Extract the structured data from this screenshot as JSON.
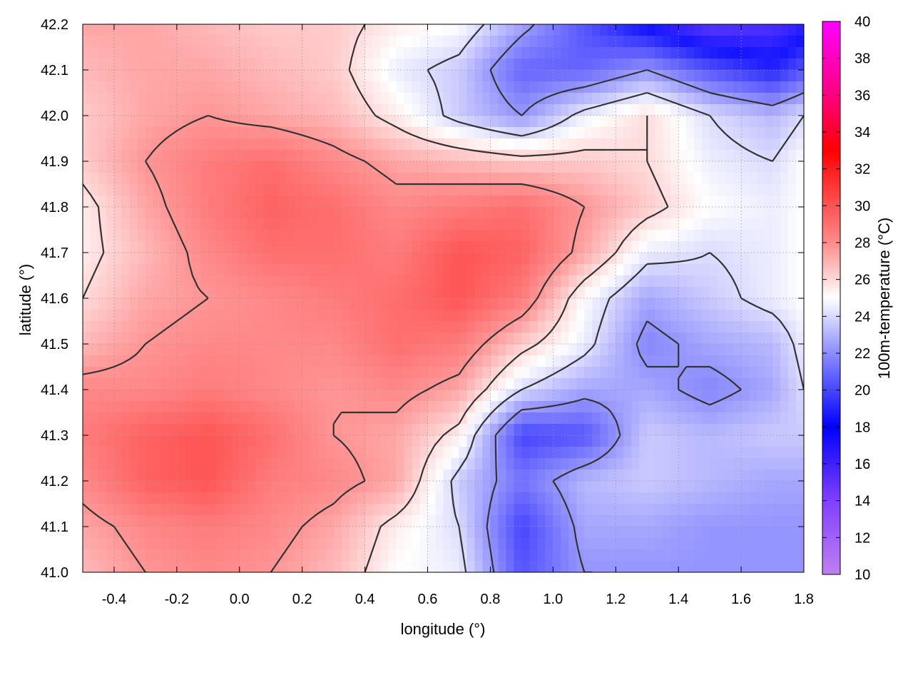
{
  "chart_data": {
    "type": "heatmap",
    "title": "",
    "xlabel": "longitude (°)",
    "ylabel": "latitude (°)",
    "colorbar_label": "100m-temperature (°C)",
    "xlim": [
      -0.5,
      1.8
    ],
    "ylim": [
      41.0,
      42.2
    ],
    "xticks": [
      "-0.4",
      "-0.2",
      "0.0",
      "0.2",
      "0.4",
      "0.6",
      "0.8",
      "1.0",
      "1.2",
      "1.4",
      "1.6",
      "1.8"
    ],
    "yticks": [
      "41.0",
      "41.1",
      "41.2",
      "41.3",
      "41.4",
      "41.5",
      "41.6",
      "41.7",
      "41.8",
      "41.9",
      "42.0",
      "42.1",
      "42.2"
    ],
    "colorbar_ticks": [
      "10",
      "12",
      "14",
      "16",
      "18",
      "20",
      "22",
      "24",
      "26",
      "28",
      "30",
      "32",
      "34",
      "36",
      "38",
      "40"
    ],
    "colorbar_range": [
      10,
      40
    ],
    "colormap": [
      {
        "value": 10,
        "color": "#c080f0"
      },
      {
        "value": 14,
        "color": "#8040ff"
      },
      {
        "value": 18,
        "color": "#0000ff"
      },
      {
        "value": 22,
        "color": "#8c8cff"
      },
      {
        "value": 25,
        "color": "#ffffff"
      },
      {
        "value": 28,
        "color": "#ff8c8c"
      },
      {
        "value": 33,
        "color": "#ff0000"
      },
      {
        "value": 36,
        "color": "#ff0080"
      },
      {
        "value": 40,
        "color": "#ff00ff"
      }
    ],
    "grid": true,
    "legend": "colorbar-right",
    "contour_levels": [
      22,
      24,
      26,
      28
    ],
    "temperature_field": {
      "lon": [
        -0.5,
        -0.3,
        -0.1,
        0.1,
        0.3,
        0.5,
        0.7,
        0.9,
        1.1,
        1.3,
        1.5,
        1.7,
        1.8
      ],
      "lat": [
        42.2,
        42.1,
        42.0,
        41.9,
        41.8,
        41.7,
        41.6,
        41.5,
        41.4,
        41.3,
        41.2,
        41.1,
        41.0
      ],
      "values": [
        [
          27.5,
          27.5,
          27.0,
          26.5,
          26.5,
          25.5,
          25.0,
          22.5,
          20.0,
          17.5,
          15.5,
          16.0,
          17.0
        ],
        [
          27.0,
          27.5,
          27.5,
          27.0,
          26.5,
          24.5,
          23.5,
          20.5,
          20.5,
          22.0,
          20.0,
          18.5,
          20.0
        ],
        [
          26.5,
          27.5,
          28.0,
          27.5,
          27.0,
          25.5,
          23.5,
          22.0,
          24.5,
          26.0,
          24.0,
          23.0,
          24.0
        ],
        [
          26.5,
          28.0,
          29.0,
          29.5,
          28.5,
          27.5,
          27.0,
          26.5,
          26.5,
          26.0,
          24.5,
          24.0,
          25.0
        ],
        [
          25.5,
          27.5,
          29.0,
          30.0,
          29.5,
          28.5,
          29.0,
          29.5,
          28.0,
          26.5,
          25.0,
          24.5,
          25.0
        ],
        [
          25.5,
          27.0,
          28.5,
          29.5,
          29.5,
          29.0,
          30.5,
          30.0,
          27.5,
          24.5,
          24.0,
          24.5,
          25.0
        ],
        [
          26.0,
          27.5,
          28.0,
          28.5,
          29.0,
          29.5,
          30.5,
          29.0,
          25.0,
          22.5,
          23.5,
          24.5,
          25.0
        ],
        [
          27.0,
          28.0,
          28.5,
          28.5,
          28.5,
          29.5,
          29.0,
          26.5,
          24.5,
          21.5,
          22.5,
          23.0,
          24.5
        ],
        [
          28.5,
          28.5,
          29.0,
          28.5,
          28.0,
          28.5,
          27.5,
          24.0,
          22.5,
          22.5,
          21.5,
          22.5,
          24.0
        ],
        [
          29.0,
          30.0,
          30.5,
          29.5,
          28.0,
          27.5,
          25.5,
          19.5,
          20.0,
          23.5,
          23.0,
          23.5,
          23.5
        ],
        [
          28.5,
          30.0,
          30.5,
          29.0,
          28.5,
          27.5,
          23.5,
          21.0,
          23.0,
          23.5,
          23.0,
          22.5,
          22.5
        ],
        [
          27.5,
          28.5,
          29.0,
          28.5,
          27.5,
          25.5,
          24.0,
          19.5,
          22.5,
          22.5,
          22.0,
          22.0,
          22.0
        ],
        [
          27.0,
          28.0,
          28.5,
          28.0,
          27.0,
          25.0,
          24.5,
          20.0,
          22.0,
          22.0,
          22.0,
          22.0,
          22.0
        ]
      ]
    }
  }
}
